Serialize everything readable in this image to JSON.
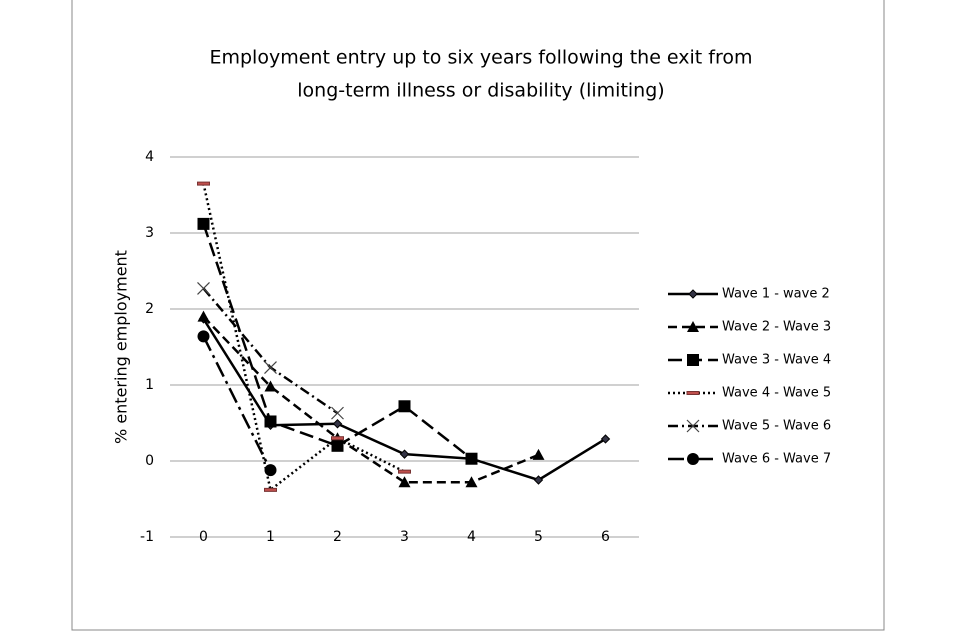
{
  "chart_data": {
    "type": "line",
    "title": [
      "Employment entry up to six years following the exit from",
      "long-term illness or disability (limiting)"
    ],
    "y_label": "% entering employment",
    "categories": [
      "0",
      "1",
      "2",
      "3",
      "4",
      "5",
      "6"
    ],
    "ylim": [
      -1,
      4
    ],
    "yticks": [
      -1,
      0,
      1,
      2,
      3,
      4
    ],
    "grid": true,
    "legend": "right",
    "series": [
      {
        "name": "Wave 1 - wave 2",
        "color": "#000000",
        "dash": "solid",
        "marker": "diamond",
        "values": [
          1.87,
          0.47,
          0.49,
          0.09,
          0.03,
          -0.25,
          0.29
        ]
      },
      {
        "name": "Wave 2 - Wave 3",
        "color": "#000000",
        "dash": "dashed",
        "marker": "triangle",
        "values": [
          1.9,
          0.98,
          0.3,
          -0.28,
          -0.28,
          0.08,
          null
        ]
      },
      {
        "name": "Wave 3 - Wave 4",
        "color": "#000000",
        "dash": "longdash",
        "marker": "square",
        "values": [
          3.12,
          0.52,
          0.2,
          0.72,
          0.03,
          null,
          null
        ]
      },
      {
        "name": "Wave 4 - Wave 5",
        "color": "#000000",
        "dash": "dotted",
        "marker": "bar",
        "values": [
          3.65,
          -0.38,
          0.3,
          -0.14,
          null,
          null,
          null
        ]
      },
      {
        "name": "Wave 5 - Wave 6",
        "color": "#000000",
        "dash": "dashdot",
        "marker": "x",
        "values": [
          2.27,
          1.23,
          0.63,
          null,
          null,
          null,
          null
        ]
      },
      {
        "name": "Wave 6 - Wave 7",
        "color": "#000000",
        "dash": "longdashdot",
        "marker": "circle",
        "values": [
          1.64,
          -0.12,
          null,
          null,
          null,
          null,
          null
        ]
      }
    ]
  }
}
